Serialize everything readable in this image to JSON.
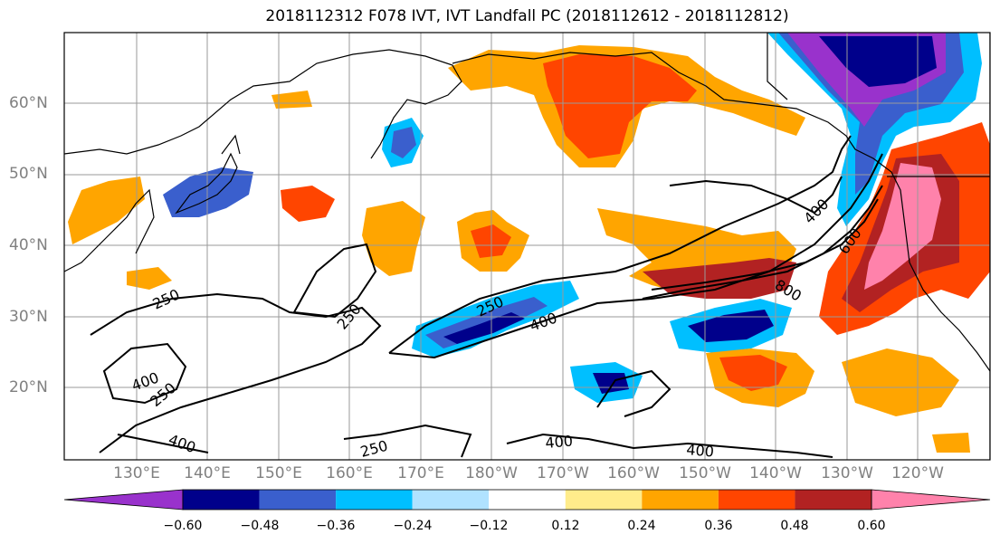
{
  "title": "2018112312 F078 IVT, IVT Landfall PC (2018112612 - 2018112812)",
  "lat_labels": [
    "60°N",
    "50°N",
    "40°N",
    "30°N",
    "20°N"
  ],
  "lon_labels": [
    "130°E",
    "140°E",
    "150°E",
    "160°E",
    "170°E",
    "180°W",
    "170°W",
    "160°W",
    "150°W",
    "140°W",
    "130°W",
    "120°W"
  ],
  "contour_labels": [
    "250",
    "250",
    "250",
    "250",
    "250",
    "400",
    "400",
    "400",
    "400",
    "400",
    "400",
    "600",
    "800"
  ],
  "colorbar": {
    "colors": [
      "#9932cc",
      "#00008b",
      "#3a5fcd",
      "#00bfff",
      "#b0e2ff",
      "#ffffff",
      "#ffec8b",
      "#ffa500",
      "#ff4500",
      "#b22222",
      "#ff82ab"
    ],
    "tick_labels": [
      "−0.60",
      "−0.48",
      "−0.36",
      "−0.24",
      "−0.12",
      "0.12",
      "0.24",
      "0.36",
      "0.48",
      "0.60"
    ]
  }
}
